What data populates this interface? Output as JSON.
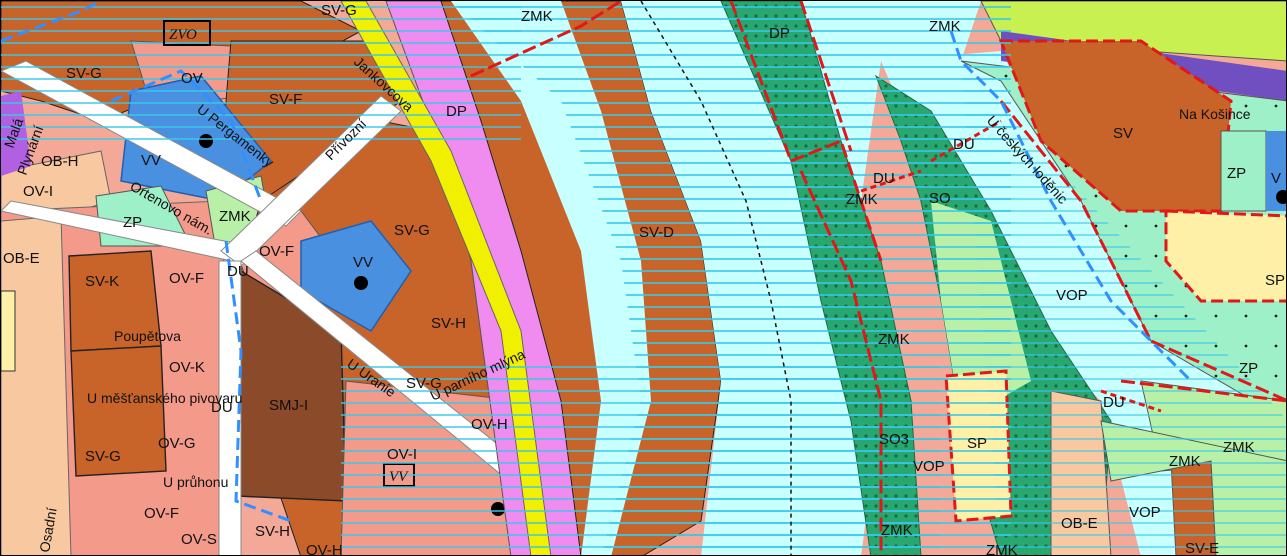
{
  "colors": {
    "water": "#c8ffff",
    "water_lines": "#38c8e8",
    "sv_brown": "#c8642a",
    "dark_brown": "#8b4a2a",
    "salmon": "#f49a8a",
    "peach": "#f8c8a0",
    "pink": "#f08cf0",
    "blue_vv": "#4a90e0",
    "light_green": "#b8f0a8",
    "mint": "#9ef0c8",
    "dark_green": "#28a870",
    "yellow_sp": "#fff0a8",
    "yellow_road": "#f0f000",
    "red_boundary": "#e01818",
    "blue_dash": "#3090ff",
    "lime": "#c8f050"
  },
  "zone_labels": {
    "svg_top": "SV-G",
    "zmk_top": "ZMK",
    "zvo": "ZVO",
    "svg_left": "SV-G",
    "ov_top": "OV",
    "svf": "SV-F",
    "dp_center": "DP",
    "dp_right": "DP",
    "zmk_topright": "ZMK",
    "sv_right": "SV",
    "zp_right": "ZP",
    "v_right": "V",
    "obh": "OB-H",
    "vv_left": "VV",
    "ovi_left": "OV-I",
    "zp_left": "ZP",
    "zmk_mid": "ZMK",
    "du_left": "DU",
    "svg_mid": "SV-G",
    "svd": "SV-D",
    "zmk_river": "ZMK",
    "du_island1": "DU",
    "du_island2": "DU",
    "so_island": "SO",
    "ovf_mid": "OV-F",
    "obe_left": "OB-E",
    "svk": "SV-K",
    "ovf_left": "OV-F",
    "vv_mid": "VV",
    "svh_mid": "SV-H",
    "sp_right": "SP",
    "vop_right": "VOP",
    "zmk_lower": "ZMK",
    "zp_lower": "ZP",
    "ovk": "OV-K",
    "smji": "SMJ-I",
    "svg_lower": "SV-G",
    "ovh_mid": "OV-H",
    "du_lower_left": "DU",
    "du_lower_right": "DU",
    "ovg": "OV-G",
    "svg_bottom_left": "SV-G",
    "so3": "SO3",
    "sp_mid": "SP",
    "zmk_far_right": "ZMK",
    "vop_mid": "VOP",
    "ovi_lower": "OV-I",
    "vv_box": "VV",
    "zmk_bottom_right": "ZMK",
    "ovf_bottom": "OV-F",
    "ovs": "OV-S",
    "svh_bottom": "SV-H",
    "ovh_bottom": "OV-H",
    "zmk_bottom": "ZMK",
    "zmk_bottom2": "ZMK",
    "obe_bottom": "OB-E",
    "vop_bottom": "VOP",
    "sve_bottom": "SV-E"
  },
  "streets": {
    "jankovcova": "Jankovcova",
    "privozni": "Přívozní",
    "u_pergamenky": "U Pergamenky",
    "ortenovo": "Ortenovo nám.",
    "plynarni": "Plynární",
    "mala": "Malá",
    "poupetova": "Poupětova",
    "u_uranie": "U Uranie",
    "u_parniho_mlyna": "U parního mlýna",
    "u_mestanskeho": "U měšťanského pivovaru",
    "u_prulohu": "U průhonu",
    "osadni": "Osadní",
    "na_kosince": "Na Košince",
    "u_ceskych_loderen": "U českých loděnic"
  }
}
